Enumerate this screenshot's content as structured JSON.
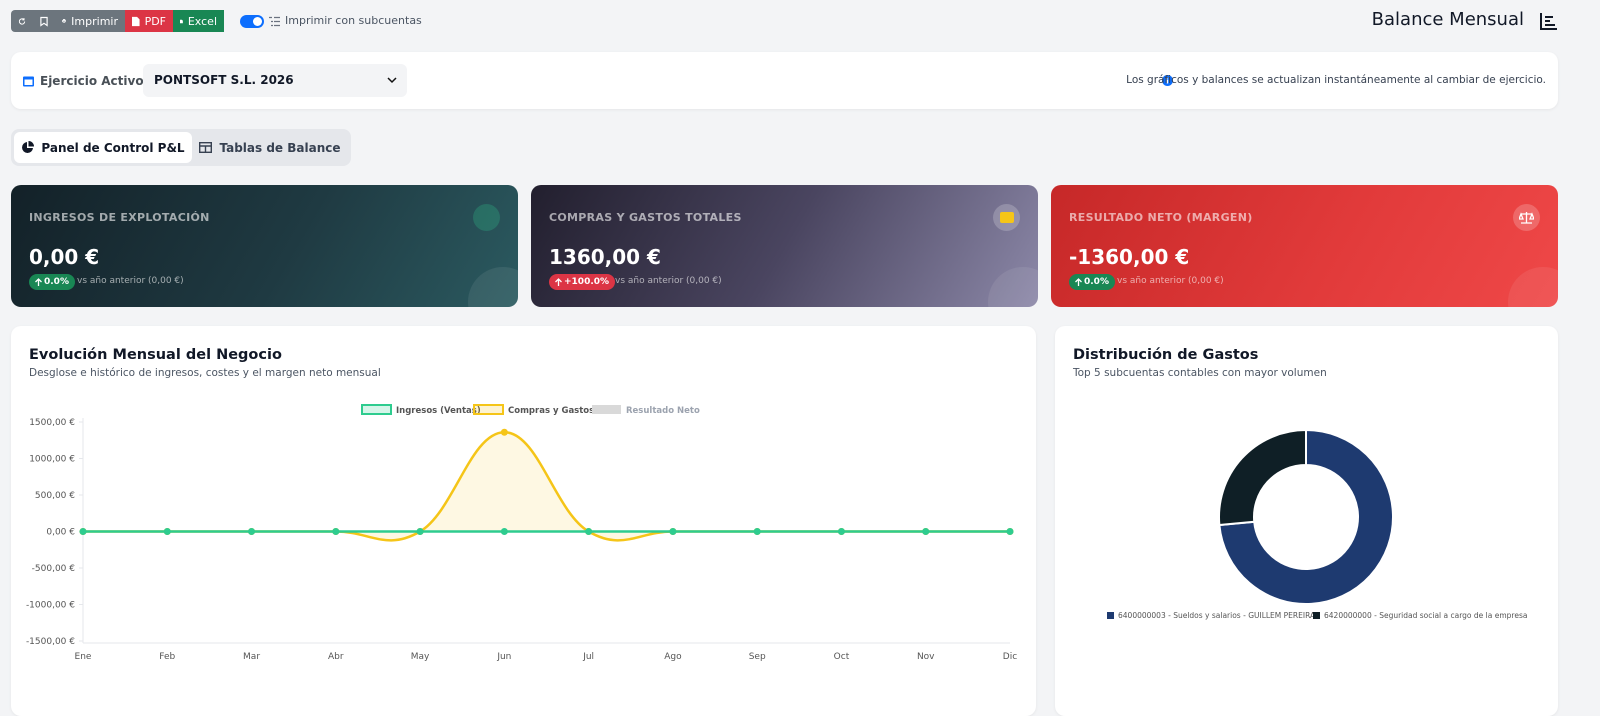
{
  "toolbar": {
    "print": "Imprimir",
    "pdf": "PDF",
    "excel": "Excel",
    "toggle_label": "Imprimir con subcuentas"
  },
  "header": {
    "title": "Balance Mensual"
  },
  "filter": {
    "label": "Ejercicio Activo:",
    "selected": "PONTSOFT S.L. 2026",
    "info": "Los gráficos y balances se actualizan instantáneamente al cambiar de ejercicio."
  },
  "tabs": [
    "Panel de Control P&L",
    "Tablas de Balance"
  ],
  "kpis": [
    {
      "title": "INGRESOS DE EXPLOTACIÓN",
      "value": "0,00 €",
      "badge": "0.0%",
      "comparison": "vs año anterior (0,00 €)"
    },
    {
      "title": "COMPRAS Y GASTOS TOTALES",
      "value": "1360,00 €",
      "badge": "+100.0%",
      "comparison": "vs año anterior (0,00 €)"
    },
    {
      "title": "RESULTADO NETO (MARGEN)",
      "value": "-1360,00 €",
      "badge": "0.0%",
      "comparison": "vs año anterior (0,00 €)"
    }
  ],
  "line_chart": {
    "type": "line",
    "title": "Evolución Mensual del Negocio",
    "subtitle": "Desglose e histórico de ingresos, costes y el margen neto mensual",
    "categories": [
      "Ene",
      "Feb",
      "Mar",
      "Abr",
      "May",
      "Jun",
      "Jul",
      "Ago",
      "Sep",
      "Oct",
      "Nov",
      "Dic"
    ],
    "series": [
      {
        "name": "Ingresos (Ventas)",
        "color": "#2ecc8f",
        "values": [
          0,
          0,
          0,
          0,
          0,
          0,
          0,
          0,
          0,
          0,
          0,
          0
        ]
      },
      {
        "name": "Compras y Gastos",
        "color": "#f5c518",
        "values": [
          0,
          0,
          0,
          0,
          0,
          1360,
          0,
          0,
          0,
          0,
          0,
          0
        ]
      },
      {
        "name": "Resultado Neto",
        "color": "#d9d9d9",
        "hidden": true
      }
    ],
    "ylim": [
      -1500,
      1500
    ],
    "yticks": [
      {
        "value": 1500,
        "label": "1500,00 €"
      },
      {
        "value": 1000,
        "label": "1000,00 €"
      },
      {
        "value": 500,
        "label": "500,00 €"
      },
      {
        "value": 0,
        "label": "0,00 €"
      },
      {
        "value": -500,
        "label": "-500,00 €"
      },
      {
        "value": -1000,
        "label": "-1000,00 €"
      },
      {
        "value": -1500,
        "label": "-1500,00 €"
      }
    ],
    "grid": false
  },
  "pie_chart": {
    "type": "donut",
    "title": "Distribución de Gastos",
    "subtitle": "Top 5 subcuentas contables con mayor volumen",
    "categories": [
      "6400000003 - Sueldos y salarios - GUILLEM PEREIRA",
      "6420000000 - Seguridad social a cargo de la empresa"
    ],
    "values": [
      1000,
      360
    ],
    "colors": [
      "#1e3a70",
      "#0f1f26"
    ]
  }
}
